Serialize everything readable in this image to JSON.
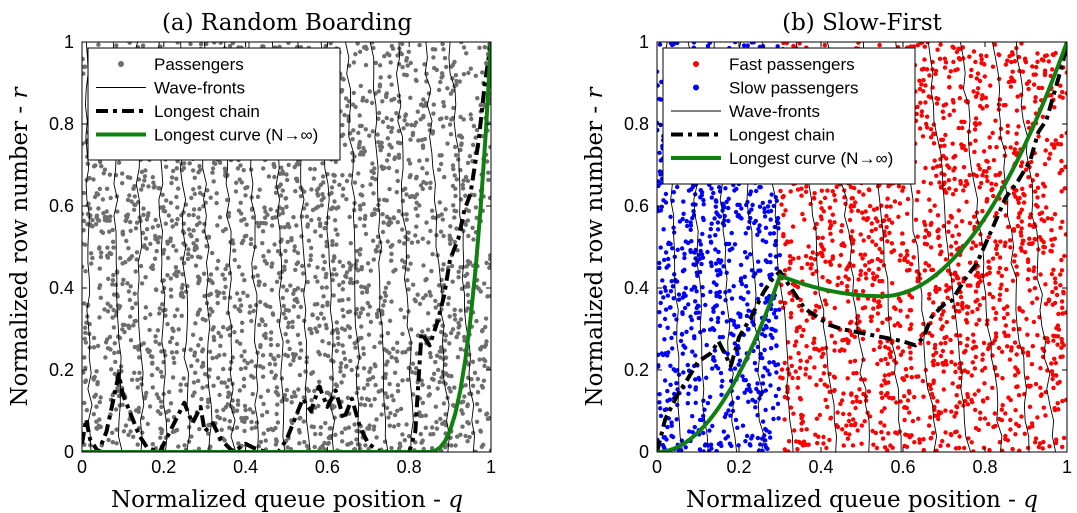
{
  "chart_data": [
    {
      "type": "scatter",
      "title": "(a) Random Boarding",
      "xlabel_text": "Normalized queue position - ",
      "xlabel_var": "q",
      "ylabel_text": "Normalized row number - ",
      "ylabel_var": "r",
      "xlim": [
        0,
        1
      ],
      "ylim": [
        0,
        1
      ],
      "xticks": [
        "0",
        "0.2",
        "0.4",
        "0.6",
        "0.8",
        "1"
      ],
      "yticks": [
        "0",
        "0.2",
        "0.4",
        "0.6",
        "0.8",
        "1"
      ],
      "grid": false,
      "legend_position": "top-left",
      "legend": [
        "Passengers",
        "Wave-fronts",
        "Longest chain",
        "Longest curve (N→∞)"
      ],
      "colors": {
        "passengers": "#6e6e6e",
        "wavefront": "#000000",
        "chain": "#000000",
        "curve": "#118011"
      },
      "longest_chain": [
        [
          0.0,
          0.02
        ],
        [
          0.01,
          0.08
        ],
        [
          0.02,
          0.03
        ],
        [
          0.04,
          0.0
        ],
        [
          0.06,
          0.05
        ],
        [
          0.075,
          0.12
        ],
        [
          0.09,
          0.19
        ],
        [
          0.1,
          0.14
        ],
        [
          0.12,
          0.09
        ],
        [
          0.14,
          0.04
        ],
        [
          0.16,
          0.01
        ],
        [
          0.19,
          0.0
        ],
        [
          0.21,
          0.04
        ],
        [
          0.23,
          0.08
        ],
        [
          0.25,
          0.12
        ],
        [
          0.27,
          0.07
        ],
        [
          0.29,
          0.11
        ],
        [
          0.3,
          0.05
        ],
        [
          0.32,
          0.07
        ],
        [
          0.34,
          0.03
        ],
        [
          0.37,
          0.0
        ],
        [
          0.4,
          0.02
        ],
        [
          0.42,
          0.01
        ],
        [
          0.45,
          0.0
        ],
        [
          0.48,
          0.0
        ],
        [
          0.5,
          0.03
        ],
        [
          0.52,
          0.08
        ],
        [
          0.54,
          0.13
        ],
        [
          0.56,
          0.1
        ],
        [
          0.58,
          0.16
        ],
        [
          0.6,
          0.11
        ],
        [
          0.62,
          0.15
        ],
        [
          0.64,
          0.08
        ],
        [
          0.66,
          0.13
        ],
        [
          0.68,
          0.06
        ],
        [
          0.7,
          0.02
        ],
        [
          0.73,
          0.0
        ],
        [
          0.77,
          0.0
        ],
        [
          0.8,
          0.0
        ],
        [
          0.815,
          0.05
        ],
        [
          0.83,
          0.29
        ],
        [
          0.85,
          0.26
        ],
        [
          0.87,
          0.32
        ],
        [
          0.885,
          0.38
        ],
        [
          0.9,
          0.47
        ],
        [
          0.92,
          0.52
        ],
        [
          0.935,
          0.59
        ],
        [
          0.95,
          0.63
        ],
        [
          0.97,
          0.76
        ],
        [
          0.985,
          0.9
        ],
        [
          1.0,
          1.0
        ]
      ],
      "longest_curve": {
        "flat_until": 0.84,
        "shape": "power",
        "exponent": 3
      },
      "wavefronts": [
        [
          0.01,
          0.02
        ],
        [
          0.075,
          0.095
        ],
        [
          0.13,
          0.15
        ],
        [
          0.185,
          0.205
        ],
        [
          0.24,
          0.26
        ],
        [
          0.295,
          0.315
        ],
        [
          0.35,
          0.37
        ],
        [
          0.41,
          0.43
        ],
        [
          0.47,
          0.495
        ],
        [
          0.53,
          0.555
        ],
        [
          0.59,
          0.615
        ],
        [
          0.65,
          0.68
        ],
        [
          0.71,
          0.745
        ],
        [
          0.77,
          0.81
        ],
        [
          0.84,
          0.9
        ],
        [
          0.9,
          0.96
        ]
      ]
    },
    {
      "type": "scatter",
      "title": "(b) Slow-First",
      "xlabel_text": "Normalized queue position - ",
      "xlabel_var": "q",
      "ylabel_text": "Normalized row number - ",
      "ylabel_var": "r",
      "xlim": [
        0,
        1
      ],
      "ylim": [
        0,
        1
      ],
      "xticks": [
        "0",
        "0.2",
        "0.4",
        "0.6",
        "0.8",
        "1"
      ],
      "yticks": [
        "0",
        "0.2",
        "0.4",
        "0.6",
        "0.8",
        "1"
      ],
      "grid": false,
      "legend_position": "top-left",
      "legend": [
        "Fast passengers",
        "Slow passengers",
        "Wave-fronts",
        "Longest chain",
        "Longest curve (N→∞)"
      ],
      "slow_fraction": 0.3,
      "colors": {
        "fast": "#ff0000",
        "slow": "#0000ff",
        "wavefront": "#000000",
        "chain": "#000000",
        "curve": "#118011"
      },
      "longest_chain": [
        [
          0.0,
          0.0
        ],
        [
          0.02,
          0.08
        ],
        [
          0.05,
          0.14
        ],
        [
          0.07,
          0.17
        ],
        [
          0.1,
          0.22
        ],
        [
          0.13,
          0.24
        ],
        [
          0.15,
          0.27
        ],
        [
          0.18,
          0.21
        ],
        [
          0.2,
          0.28
        ],
        [
          0.23,
          0.33
        ],
        [
          0.26,
          0.39
        ],
        [
          0.28,
          0.42
        ],
        [
          0.3,
          0.44
        ],
        [
          0.32,
          0.41
        ],
        [
          0.34,
          0.38
        ],
        [
          0.36,
          0.35
        ],
        [
          0.39,
          0.33
        ],
        [
          0.42,
          0.31
        ],
        [
          0.45,
          0.3
        ],
        [
          0.5,
          0.29
        ],
        [
          0.55,
          0.28
        ],
        [
          0.6,
          0.27
        ],
        [
          0.63,
          0.26
        ],
        [
          0.65,
          0.28
        ],
        [
          0.67,
          0.33
        ],
        [
          0.7,
          0.36
        ],
        [
          0.72,
          0.37
        ],
        [
          0.75,
          0.42
        ],
        [
          0.78,
          0.46
        ],
        [
          0.82,
          0.55
        ],
        [
          0.85,
          0.62
        ],
        [
          0.88,
          0.66
        ],
        [
          0.91,
          0.71
        ],
        [
          0.93,
          0.78
        ],
        [
          0.95,
          0.81
        ],
        [
          0.97,
          0.88
        ],
        [
          0.99,
          0.95
        ],
        [
          1.0,
          1.0
        ]
      ],
      "longest_curve": {
        "slow_section_peak": 0.43,
        "valley_x": 0.55,
        "valley_y": 0.38
      },
      "wavefronts": [
        [
          0.02,
          0.06
        ],
        [
          0.08,
          0.12
        ],
        [
          0.14,
          0.19
        ],
        [
          0.2,
          0.26
        ],
        [
          0.26,
          0.33
        ],
        [
          0.34,
          0.44
        ],
        [
          0.42,
          0.52
        ],
        [
          0.5,
          0.6
        ],
        [
          0.58,
          0.68
        ],
        [
          0.66,
          0.76
        ],
        [
          0.74,
          0.84
        ],
        [
          0.82,
          0.91
        ],
        [
          0.88,
          0.97
        ]
      ]
    }
  ]
}
